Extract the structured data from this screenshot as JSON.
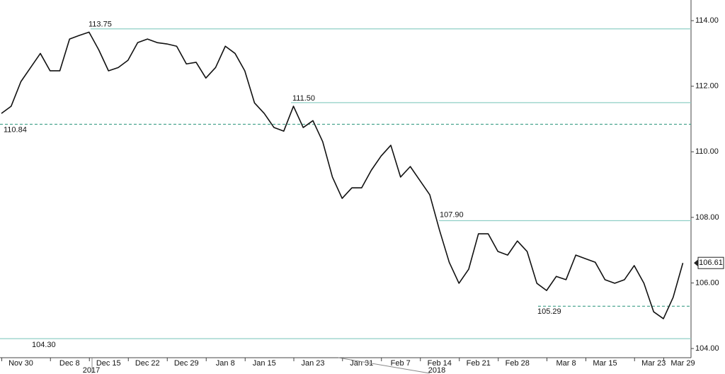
{
  "chart_data": {
    "type": "line",
    "categories": [
      null,
      null,
      "Nov 30",
      null,
      null,
      null,
      null,
      "Dec 8",
      null,
      null,
      null,
      "Dec 15",
      null,
      null,
      null,
      "Dec 22",
      null,
      null,
      null,
      "Dec 29",
      null,
      null,
      null,
      "Jan 8",
      null,
      null,
      null,
      "Jan 15",
      null,
      null,
      null,
      null,
      "Jan 23",
      null,
      null,
      null,
      null,
      "Jan 31",
      null,
      null,
      null,
      "Feb 7",
      null,
      null,
      null,
      "Feb 14",
      null,
      null,
      null,
      "Feb 21",
      null,
      null,
      null,
      "Feb 28",
      null,
      null,
      null,
      null,
      "Mar 8",
      null,
      null,
      null,
      "Mar 15",
      null,
      null,
      null,
      null,
      "Mar 23",
      null,
      null,
      "Mar 29"
    ],
    "values": [
      111.17,
      111.39,
      112.14,
      112.57,
      113.0,
      112.47,
      112.47,
      113.44,
      113.55,
      113.65,
      113.11,
      112.47,
      112.57,
      112.79,
      113.33,
      113.44,
      113.33,
      113.29,
      113.22,
      112.68,
      112.73,
      112.25,
      112.57,
      113.22,
      113.0,
      112.47,
      111.49,
      111.17,
      110.74,
      110.63,
      111.39,
      110.74,
      110.95,
      110.31,
      109.23,
      108.58,
      108.9,
      108.9,
      109.44,
      109.87,
      110.2,
      109.23,
      109.55,
      109.12,
      108.69,
      107.61,
      106.63,
      105.99,
      106.42,
      107.5,
      107.5,
      106.96,
      106.85,
      107.28,
      106.96,
      105.99,
      105.77,
      106.2,
      106.1,
      106.85,
      106.74,
      106.63,
      106.1,
      105.99,
      106.1,
      106.53,
      105.99,
      105.12,
      104.91,
      105.56,
      106.61
    ],
    "color": "#111111",
    "year_labels": [
      "2017",
      "2018"
    ],
    "ylim": [
      103.72,
      114.63
    ],
    "yticks": [
      {
        "value": 104,
        "label": "104.00"
      },
      {
        "value": 106,
        "label": "106.00"
      },
      {
        "value": 108,
        "label": "108.00"
      },
      {
        "value": 110,
        "label": "110.00"
      },
      {
        "value": 112,
        "label": "112.00"
      },
      {
        "value": 114,
        "label": "114.00"
      }
    ],
    "reference_lines": [
      {
        "value": 113.75,
        "label": "113.75",
        "style": "solid",
        "color": "#8fcfc6"
      },
      {
        "value": 111.5,
        "label": "111.50",
        "style": "solid",
        "color": "#8fcfc6"
      },
      {
        "value": 110.84,
        "label": "110.84",
        "style": "dashed",
        "color": "#3f9f88"
      },
      {
        "value": 107.9,
        "label": "107.90",
        "style": "solid",
        "color": "#8fcfc6"
      },
      {
        "value": 105.29,
        "label": "105.29",
        "style": "dashed",
        "color": "#3f9f88"
      },
      {
        "value": 104.3,
        "label": "104.30",
        "style": "solid",
        "color": "#8fcfc6"
      }
    ]
  }
}
